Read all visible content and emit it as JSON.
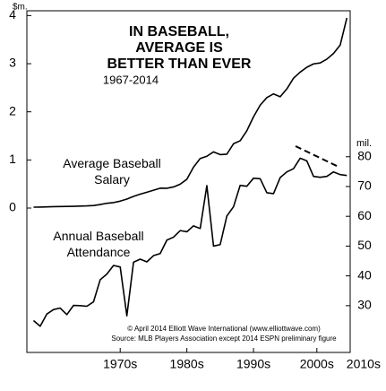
{
  "chart_data": {
    "type": "line",
    "title": [
      "IN BASEBALL,",
      "AVERAGE IS",
      "BETTER THAN EVER"
    ],
    "subtitle": "1967-2014",
    "y_unit": "$m.",
    "y2_unit": "mil.",
    "source": [
      "© April 2014 Elliott Wave International (www.elliottwave.com)",
      "Source: MLB Players Association except 2014 ESPN preliminary figure"
    ],
    "x": [
      1967,
      1968,
      1969,
      1970,
      1971,
      1972,
      1973,
      1974,
      1975,
      1976,
      1977,
      1978,
      1979,
      1980,
      1981,
      1982,
      1983,
      1984,
      1985,
      1986,
      1987,
      1988,
      1989,
      1990,
      1991,
      1992,
      1993,
      1994,
      1995,
      1996,
      1997,
      1998,
      1999,
      2000,
      2001,
      2002,
      2003,
      2004,
      2005,
      2006,
      2007,
      2008,
      2009,
      2010,
      2011,
      2012,
      2013,
      2014
    ],
    "series": [
      {
        "name": "Average Baseball Salary",
        "color": "#000000",
        "values": [
          0.019,
          0.021,
          0.025,
          0.029,
          0.031,
          0.034,
          0.036,
          0.041,
          0.045,
          0.052,
          0.074,
          0.1,
          0.114,
          0.144,
          0.186,
          0.242,
          0.289,
          0.329,
          0.371,
          0.413,
          0.412,
          0.439,
          0.497,
          0.598,
          0.851,
          1.029,
          1.076,
          1.168,
          1.111,
          1.12,
          1.337,
          1.399,
          1.607,
          1.896,
          2.139,
          2.296,
          2.372,
          2.313,
          2.476,
          2.699,
          2.825,
          2.926,
          2.996,
          3.015,
          3.095,
          3.213,
          3.386,
          3.95
        ]
      },
      {
        "name": "Annual Baseball Attendance",
        "color": "#000000",
        "axis": "y2",
        "values": [
          25.0,
          23.1,
          27.2,
          28.7,
          29.2,
          27.0,
          30.1,
          30.0,
          29.8,
          31.3,
          38.7,
          40.6,
          43.5,
          43.0,
          26.6,
          44.6,
          45.6,
          44.7,
          46.8,
          47.5,
          52.0,
          53.0,
          55.2,
          54.8,
          56.8,
          55.9,
          70.3,
          50.0,
          50.5,
          60.1,
          63.2,
          70.4,
          70.1,
          72.8,
          72.6,
          67.9,
          67.6,
          73.0,
          74.9,
          76.0,
          79.5,
          78.6,
          73.4,
          73.1,
          73.4,
          74.9,
          74.0,
          73.7
        ]
      }
    ],
    "xlim": [
      1966,
      2014.5
    ],
    "xticks": [
      {
        "value": 1980,
        "label": "1970s"
      },
      {
        "value": 1990,
        "label": "1980s"
      },
      {
        "value": 2000,
        "label": "1990s"
      },
      {
        "value": 2009.5,
        "label": "2000s"
      },
      {
        "value": 2016.5,
        "label": "2010s"
      }
    ],
    "ylim": [
      -3,
      4.1
    ],
    "yticks": [
      0,
      1,
      2,
      3,
      4
    ],
    "y2lim": [
      14.3,
      129
    ],
    "y2ticks": [
      30,
      40,
      50,
      60,
      70,
      80
    ]
  }
}
